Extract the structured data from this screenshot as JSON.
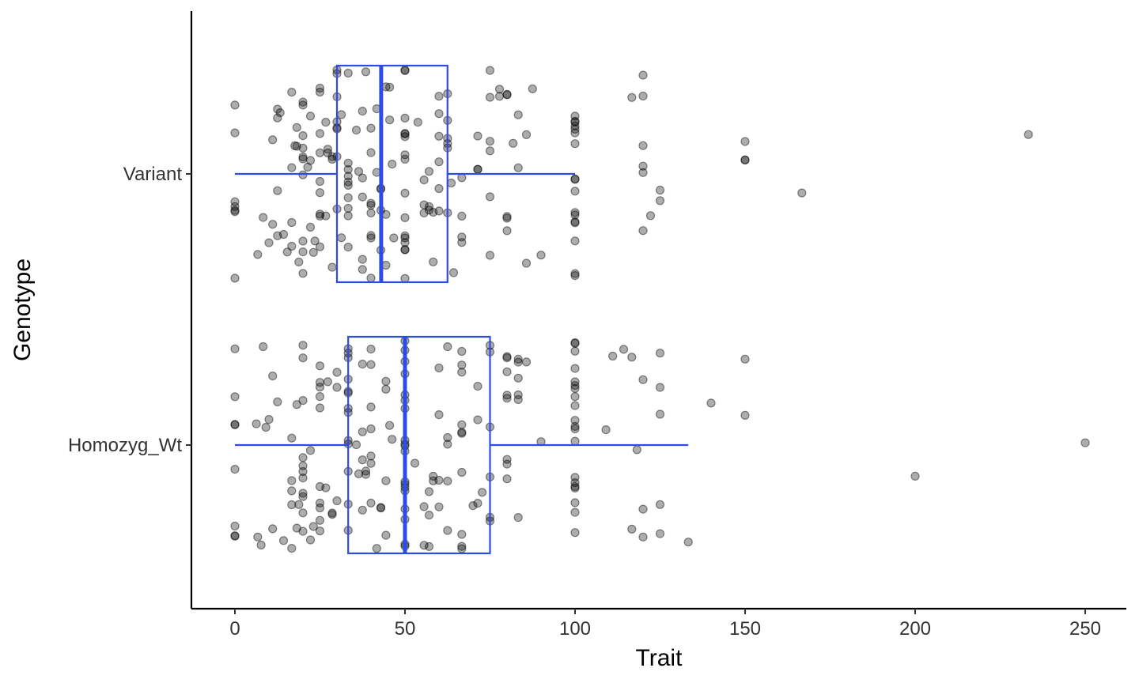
{
  "chart_data": {
    "type": "boxplot",
    "orientation": "horizontal",
    "title": "",
    "xlabel": "Trait",
    "ylabel": "Genotype",
    "xlim": [
      -12.5,
      262.5
    ],
    "xticks": [
      0,
      50,
      100,
      150,
      200,
      250
    ],
    "xtick_labels": [
      "0",
      "50",
      "100",
      "150",
      "200",
      "250"
    ],
    "categories": [
      "Homozyg_Wt",
      "Variant"
    ],
    "grid": false,
    "legend": "none",
    "colors": {
      "box": "#2B4CE8",
      "points": "#000000"
    },
    "boxes": [
      {
        "category": "Homozyg_Wt",
        "whisker_low": 0,
        "q1": 33.3,
        "median": 50,
        "q3": 75,
        "whisker_high": 133.3
      },
      {
        "category": "Variant",
        "whisker_low": 0,
        "q1": 30,
        "median": 43,
        "q3": 62.5,
        "whisker_high": 100
      }
    ],
    "points": [
      {
        "category": "Variant",
        "x": [
          0,
          0,
          0,
          0,
          0,
          0,
          0,
          6.7,
          8.3,
          10,
          11.1,
          11.1,
          12.5,
          12.5,
          12.5,
          12.5,
          13.3,
          14.3,
          15.4,
          16.7,
          16.7,
          16.7,
          16.7,
          17.6,
          18.2,
          18.2,
          18.8,
          20,
          20,
          20,
          20,
          20,
          20,
          20,
          20,
          20,
          20,
          21.4,
          22.2,
          22.2,
          22.2,
          23.1,
          23.5,
          25,
          25,
          25,
          25,
          25,
          25,
          25,
          25,
          25,
          26.7,
          26.7,
          27.3,
          27.3,
          28.6,
          28.6,
          28.6,
          30,
          30,
          30,
          30,
          30,
          30,
          30,
          30,
          31.3,
          31.3,
          33.3,
          33.3,
          33.3,
          33.3,
          33.3,
          33.3,
          33.3,
          33.3,
          33.3,
          33.3,
          35.7,
          36.4,
          37.5,
          37.5,
          37.5,
          37.5,
          37.5,
          38.5,
          40,
          40,
          40,
          40,
          40,
          40,
          40,
          40,
          41.7,
          41.7,
          42.9,
          42.9,
          42.9,
          42.9,
          44.4,
          44.4,
          44.4,
          45.5,
          45.5,
          46.2,
          46.7,
          50,
          50,
          50,
          50,
          50,
          50,
          50,
          50,
          50,
          50,
          50,
          50,
          50,
          50,
          50,
          50,
          53.8,
          55.6,
          55.6,
          55.6,
          57.1,
          57.1,
          57.1,
          58.3,
          58.3,
          60,
          60,
          60,
          60,
          60,
          60,
          62.5,
          62.5,
          62.5,
          62.5,
          62.5,
          62.5,
          63.6,
          64.3,
          66.7,
          66.7,
          66.7,
          66.7,
          71.4,
          71.4,
          71.4,
          75,
          75,
          75,
          75,
          75,
          75,
          77.8,
          77.8,
          80,
          80,
          80,
          80,
          80,
          81.8,
          83.3,
          83.3,
          85.7,
          85.7,
          87.5,
          90,
          100,
          100,
          100,
          100,
          100,
          100,
          100,
          100,
          100,
          100,
          100,
          100,
          100,
          100,
          100,
          100,
          100,
          116.7,
          120,
          120,
          120,
          120,
          120,
          120,
          122.2,
          125,
          125,
          150,
          150,
          150,
          166.7,
          233.3
        ]
      },
      {
        "category": "Homozyg_Wt",
        "x": [
          0,
          0,
          0,
          0,
          0,
          0,
          0,
          0,
          6.3,
          6.7,
          7.7,
          8.3,
          9.1,
          10,
          11.1,
          11.1,
          12.5,
          14.3,
          16.7,
          16.7,
          16.7,
          16.7,
          16.7,
          18.2,
          18.2,
          18.8,
          20,
          20,
          20,
          20,
          20,
          20,
          20,
          20,
          20,
          20,
          20,
          22.2,
          22.2,
          23.1,
          25,
          25,
          25,
          25,
          25,
          25,
          25,
          25,
          25,
          25,
          26.7,
          27.3,
          28.6,
          28.6,
          30,
          30,
          30,
          33.3,
          33.3,
          33.3,
          33.3,
          33.3,
          33.3,
          33.3,
          33.3,
          33.3,
          33.3,
          33.3,
          33.3,
          33.3,
          35.7,
          36.4,
          37.5,
          37.5,
          37.5,
          37.5,
          38.5,
          38.5,
          40,
          40,
          40,
          40,
          40,
          40,
          40,
          41.7,
          42.9,
          42.9,
          44.4,
          44.4,
          44.4,
          44.4,
          45.5,
          46.2,
          50,
          50,
          50,
          50,
          50,
          50,
          50,
          50,
          50,
          50,
          50,
          50,
          50,
          50,
          50,
          50,
          50,
          50,
          50,
          52.9,
          55.6,
          55.6,
          57.1,
          57.1,
          57.1,
          58.3,
          58.3,
          60,
          60,
          60,
          60,
          62.5,
          62.5,
          62.5,
          62.5,
          62.5,
          66.7,
          66.7,
          66.7,
          66.7,
          66.7,
          66.7,
          66.7,
          66.7,
          66.7,
          66.7,
          70,
          71.4,
          71.4,
          71.4,
          72.7,
          75,
          75,
          75,
          75,
          75,
          75,
          80,
          80,
          80,
          80,
          80,
          80,
          80,
          80,
          83.3,
          83.3,
          83.3,
          83.3,
          83.3,
          83.3,
          85.7,
          90,
          100,
          100,
          100,
          100,
          100,
          100,
          100,
          100,
          100,
          100,
          100,
          100,
          100,
          100,
          100,
          100,
          100,
          100,
          100,
          100,
          109.1,
          111.1,
          114.3,
          116.7,
          116.7,
          118.2,
          120,
          120,
          120,
          125,
          125,
          125,
          125,
          125,
          133.3,
          140,
          150,
          150,
          200,
          250
        ]
      }
    ]
  }
}
